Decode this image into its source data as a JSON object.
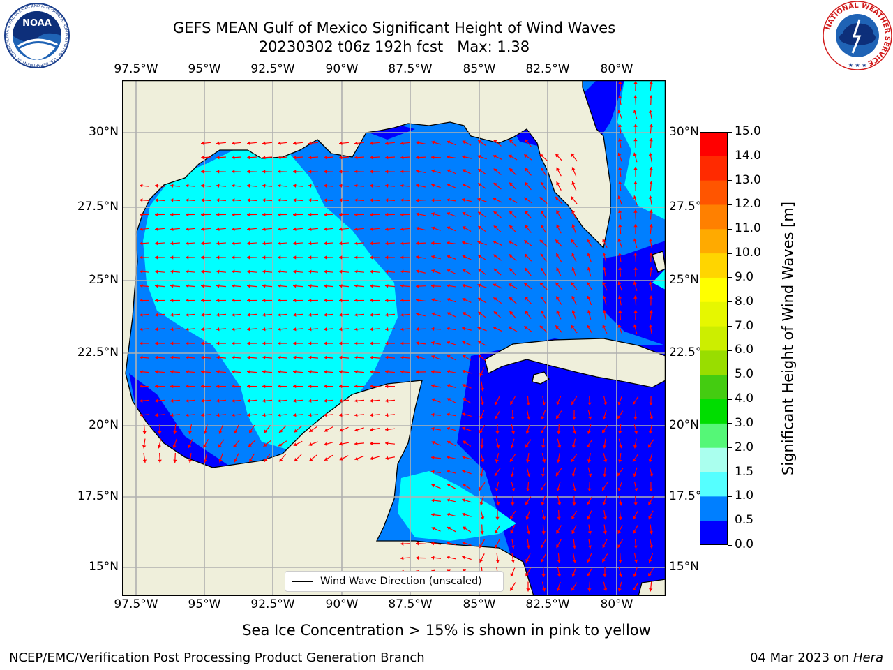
{
  "title": {
    "line1": "GEFS MEAN Gulf of Mexico Significant Height of Wind Waves",
    "line2": "20230302 t06z 192h fcst   Max: 1.38"
  },
  "logos": {
    "left": "NOAA",
    "left_ring_text": "NATIONAL OCEANIC AND ATMOSPHERIC ADMINISTRATION · U.S. DEPARTMENT OF COMMERCE",
    "right_ring_text": "NATIONAL WEATHER SERVICE"
  },
  "axes": {
    "lon_labels": [
      "97.5°W",
      "95°W",
      "92.5°W",
      "90°W",
      "87.5°W",
      "85°W",
      "82.5°W",
      "80°W"
    ],
    "lat_labels": [
      "30°N",
      "27.5°N",
      "25°N",
      "22.5°N",
      "20°N",
      "17.5°N",
      "15°N"
    ]
  },
  "legend": {
    "label": "Wind Wave Direction (unscaled)"
  },
  "colorbar": {
    "title": "Significant Height of Wind Waves [m]",
    "ticks": [
      "15.0",
      "14.0",
      "13.0",
      "12.0",
      "11.0",
      "10.0",
      "9.0",
      "8.0",
      "7.0",
      "6.0",
      "5.0",
      "4.0",
      "3.0",
      "2.0",
      "1.5",
      "1.0",
      "0.5",
      "0.0"
    ],
    "colors": [
      "#ff0000",
      "#ff2a00",
      "#ff5500",
      "#ff8000",
      "#ffaa00",
      "#ffd500",
      "#ffff00",
      "#e6f700",
      "#ccee00",
      "#99dd00",
      "#44cc11",
      "#00dd00",
      "#55f777",
      "#aaffee",
      "#55ffff",
      "#00ffff",
      "#007fff",
      "#0000ff"
    ]
  },
  "palette": {
    "land": "#efefdb",
    "wave_0_05": "#0000ff",
    "wave_05_10": "#007fff",
    "wave_10_15": "#00ffff",
    "arrow": "#ff0000",
    "grid": "#b0b0b0"
  },
  "note": "Sea Ice Concentration > 15% is shown in pink to yellow",
  "footer": {
    "left": "NCEP/EMC/Verification Post Processing Product Generation Branch",
    "right_date": "04 Mar 2023 on ",
    "right_host": "Hera"
  }
}
